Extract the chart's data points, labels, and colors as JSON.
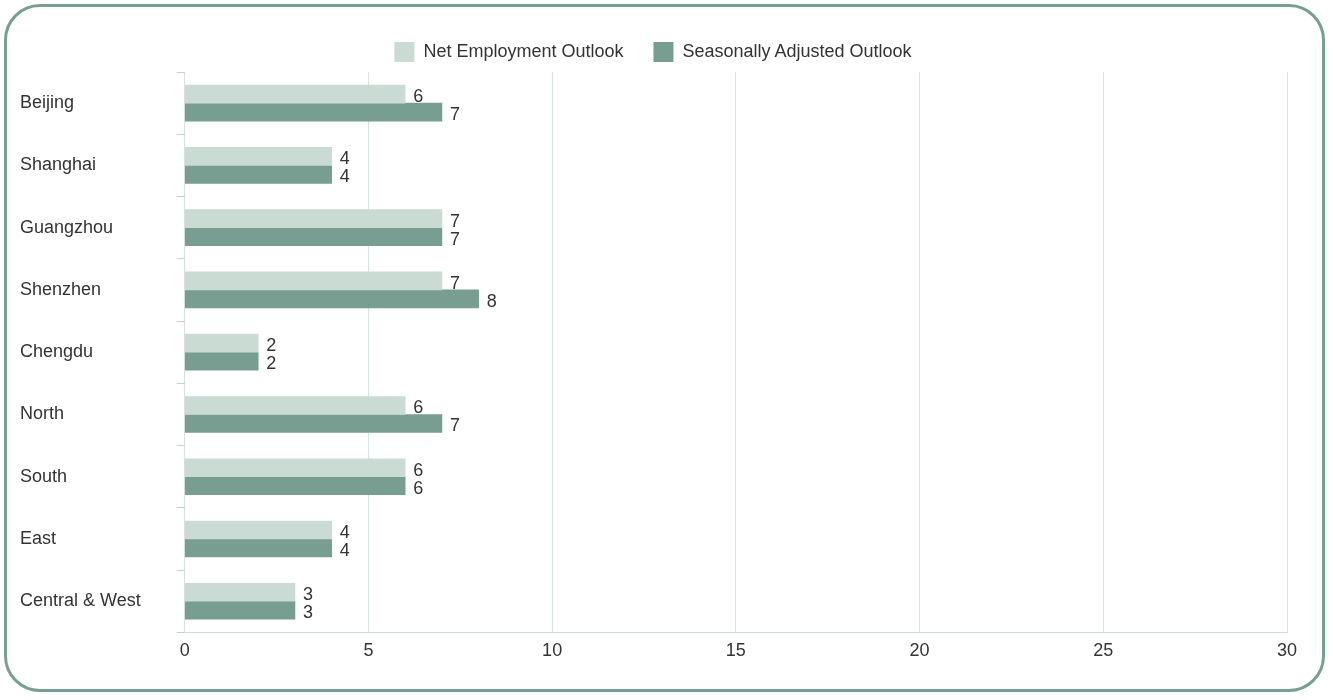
{
  "chart_data": {
    "type": "bar",
    "orientation": "horizontal",
    "categories": [
      "Beijing",
      "Shanghai",
      "Guangzhou",
      "Shenzhen",
      "Chengdu",
      "North",
      "South",
      "East",
      "Central & West"
    ],
    "series": [
      {
        "name": "Net Employment Outlook",
        "color": "#c9dbd3",
        "values": [
          6,
          4,
          7,
          7,
          2,
          6,
          6,
          4,
          3
        ]
      },
      {
        "name": "Seasonally Adjusted Outlook",
        "color": "#779e90",
        "values": [
          7,
          4,
          7,
          8,
          2,
          7,
          6,
          4,
          3
        ]
      }
    ],
    "xlim": [
      0,
      30
    ],
    "xticks": [
      0,
      5,
      10,
      15,
      20,
      25,
      30
    ],
    "grid": "x",
    "legend": "top",
    "data_labels": true
  }
}
